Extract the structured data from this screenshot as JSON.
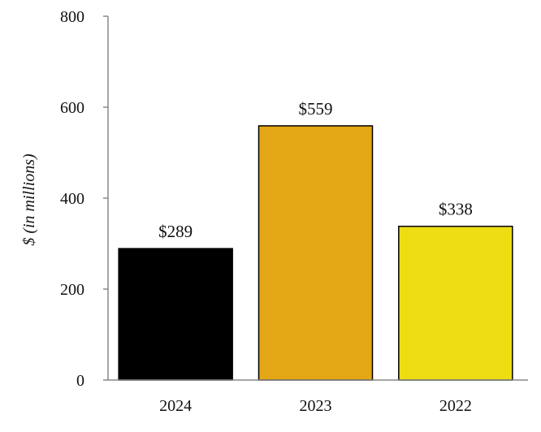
{
  "chart_data": {
    "type": "bar",
    "title": "",
    "xlabel": "",
    "ylabel": "$ (in millions)",
    "ylim": [
      0,
      800
    ],
    "yticks": [
      0,
      200,
      400,
      600,
      800
    ],
    "grid": false,
    "categories": [
      "2024",
      "2023",
      "2022"
    ],
    "values": [
      289,
      559,
      338
    ],
    "value_labels": [
      "$289",
      "$559",
      "$338"
    ],
    "colors": [
      "#000000",
      "#E3A614",
      "#EEDD12"
    ]
  }
}
